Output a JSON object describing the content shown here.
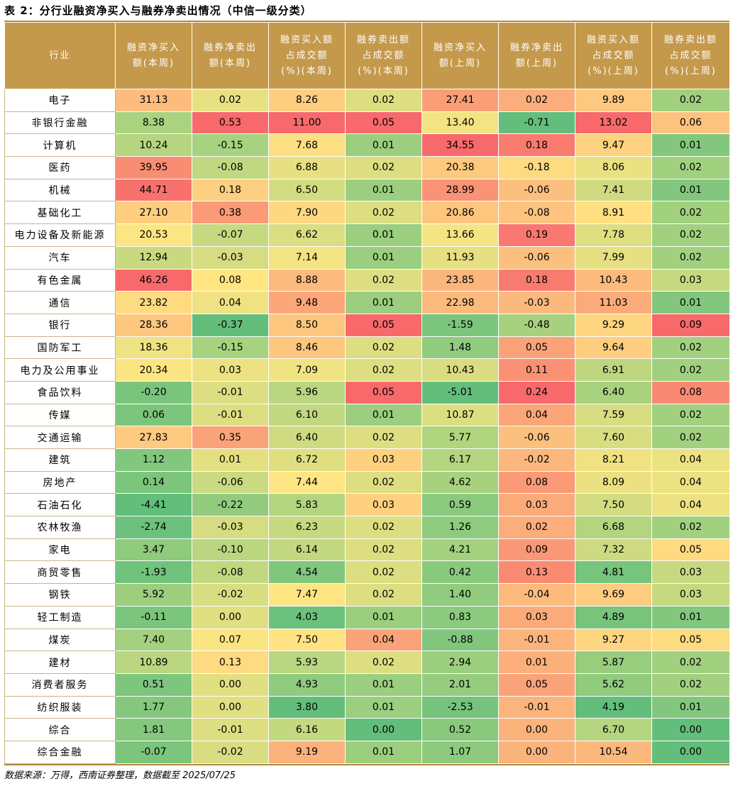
{
  "title": "表 2：分行业融资净买入与融券净卖出情况（中信一级分类）",
  "source": "数据来源：万得，西南证券整理，数据截至 2025/07/25",
  "columns": [
    {
      "lines": [
        "行业"
      ]
    },
    {
      "lines": [
        "融资净买入",
        "额(本周)"
      ]
    },
    {
      "lines": [
        "融券净卖出",
        "额(本周)"
      ]
    },
    {
      "lines": [
        "融资买入额",
        "占成交额",
        "(%)(本周)"
      ]
    },
    {
      "lines": [
        "融券卖出额",
        "占成交额",
        "(%)(本周)"
      ]
    },
    {
      "lines": [
        "融资净买入",
        "额(上周)"
      ]
    },
    {
      "lines": [
        "融券净卖出",
        "额(上周)"
      ]
    },
    {
      "lines": [
        "融资买入额",
        "占成交额",
        "(%)(上周)"
      ]
    },
    {
      "lines": [
        "融券卖出额",
        "占成交额",
        "(%)(上周)"
      ]
    }
  ],
  "heat_colors": [
    "#63be7b",
    "#a9d27f",
    "#ffe683",
    "#fbb27c",
    "#f8696b"
  ],
  "rows": [
    {
      "industry": "电子",
      "values": [
        "31.13",
        "0.02",
        "8.26",
        "0.02",
        "27.41",
        "0.02",
        "9.89",
        "0.02"
      ]
    },
    {
      "industry": "非银行金融",
      "values": [
        "8.38",
        "0.53",
        "11.00",
        "0.05",
        "13.40",
        "-0.71",
        "13.02",
        "0.06"
      ]
    },
    {
      "industry": "计算机",
      "values": [
        "10.24",
        "-0.15",
        "7.68",
        "0.01",
        "34.55",
        "0.18",
        "9.47",
        "0.01"
      ]
    },
    {
      "industry": "医药",
      "values": [
        "39.95",
        "-0.08",
        "6.88",
        "0.02",
        "20.38",
        "-0.18",
        "8.06",
        "0.02"
      ]
    },
    {
      "industry": "机械",
      "values": [
        "44.71",
        "0.18",
        "6.50",
        "0.01",
        "28.99",
        "-0.06",
        "7.41",
        "0.01"
      ]
    },
    {
      "industry": "基础化工",
      "values": [
        "27.10",
        "0.38",
        "7.90",
        "0.02",
        "20.86",
        "-0.08",
        "8.91",
        "0.02"
      ]
    },
    {
      "industry": "电力设备及新能源",
      "values": [
        "20.53",
        "-0.07",
        "6.62",
        "0.01",
        "13.66",
        "0.19",
        "7.78",
        "0.02"
      ]
    },
    {
      "industry": "汽车",
      "values": [
        "12.94",
        "-0.03",
        "7.14",
        "0.01",
        "11.93",
        "-0.06",
        "7.99",
        "0.02"
      ]
    },
    {
      "industry": "有色金属",
      "values": [
        "46.26",
        "0.08",
        "8.88",
        "0.02",
        "23.85",
        "0.18",
        "10.43",
        "0.03"
      ]
    },
    {
      "industry": "通信",
      "values": [
        "23.82",
        "0.04",
        "9.48",
        "0.01",
        "22.98",
        "-0.03",
        "11.03",
        "0.01"
      ]
    },
    {
      "industry": "银行",
      "values": [
        "28.36",
        "-0.37",
        "8.50",
        "0.05",
        "-1.59",
        "-0.48",
        "9.29",
        "0.09"
      ]
    },
    {
      "industry": "国防军工",
      "values": [
        "18.36",
        "-0.15",
        "8.46",
        "0.02",
        "1.48",
        "0.05",
        "9.64",
        "0.02"
      ]
    },
    {
      "industry": "电力及公用事业",
      "values": [
        "20.34",
        "0.03",
        "7.09",
        "0.02",
        "10.43",
        "0.11",
        "6.91",
        "0.02"
      ]
    },
    {
      "industry": "食品饮料",
      "values": [
        "-0.20",
        "-0.01",
        "5.96",
        "0.05",
        "-5.01",
        "0.24",
        "6.40",
        "0.08"
      ]
    },
    {
      "industry": "传媒",
      "values": [
        "0.06",
        "-0.01",
        "6.10",
        "0.01",
        "10.87",
        "0.04",
        "7.59",
        "0.02"
      ]
    },
    {
      "industry": "交通运输",
      "values": [
        "27.83",
        "0.35",
        "6.40",
        "0.02",
        "5.77",
        "-0.06",
        "7.60",
        "0.02"
      ]
    },
    {
      "industry": "建筑",
      "values": [
        "1.12",
        "0.01",
        "6.72",
        "0.03",
        "6.17",
        "-0.02",
        "8.21",
        "0.04"
      ]
    },
    {
      "industry": "房地产",
      "values": [
        "0.14",
        "-0.06",
        "7.44",
        "0.02",
        "4.62",
        "0.08",
        "8.09",
        "0.04"
      ]
    },
    {
      "industry": "石油石化",
      "values": [
        "-4.41",
        "-0.22",
        "5.83",
        "0.03",
        "0.59",
        "0.03",
        "7.50",
        "0.04"
      ]
    },
    {
      "industry": "农林牧渔",
      "values": [
        "-2.74",
        "-0.03",
        "6.23",
        "0.02",
        "1.26",
        "0.02",
        "6.68",
        "0.02"
      ]
    },
    {
      "industry": "家电",
      "values": [
        "3.47",
        "-0.10",
        "6.14",
        "0.02",
        "4.21",
        "0.09",
        "7.32",
        "0.05"
      ]
    },
    {
      "industry": "商贸零售",
      "values": [
        "-1.93",
        "-0.08",
        "4.54",
        "0.02",
        "0.42",
        "0.13",
        "4.81",
        "0.03"
      ]
    },
    {
      "industry": "钢铁",
      "values": [
        "5.92",
        "-0.02",
        "7.47",
        "0.02",
        "1.40",
        "-0.04",
        "9.69",
        "0.03"
      ]
    },
    {
      "industry": "轻工制造",
      "values": [
        "-0.11",
        "0.00",
        "4.03",
        "0.01",
        "0.83",
        "0.03",
        "4.89",
        "0.01"
      ]
    },
    {
      "industry": "煤炭",
      "values": [
        "7.40",
        "0.07",
        "7.50",
        "0.04",
        "-0.88",
        "-0.01",
        "9.27",
        "0.05"
      ]
    },
    {
      "industry": "建材",
      "values": [
        "10.89",
        "0.13",
        "5.93",
        "0.02",
        "2.94",
        "0.01",
        "5.87",
        "0.02"
      ]
    },
    {
      "industry": "消费者服务",
      "values": [
        "0.51",
        "0.00",
        "4.93",
        "0.01",
        "2.01",
        "0.05",
        "5.62",
        "0.02"
      ]
    },
    {
      "industry": "纺织服装",
      "values": [
        "1.77",
        "0.00",
        "3.80",
        "0.01",
        "-2.53",
        "-0.01",
        "4.19",
        "0.01"
      ]
    },
    {
      "industry": "综合",
      "values": [
        "1.81",
        "-0.01",
        "6.16",
        "0.00",
        "0.52",
        "0.00",
        "6.70",
        "0.00"
      ]
    },
    {
      "industry": "综合金融",
      "values": [
        "-0.07",
        "-0.02",
        "9.19",
        "0.01",
        "1.07",
        "0.00",
        "10.54",
        "0.00"
      ]
    }
  ]
}
